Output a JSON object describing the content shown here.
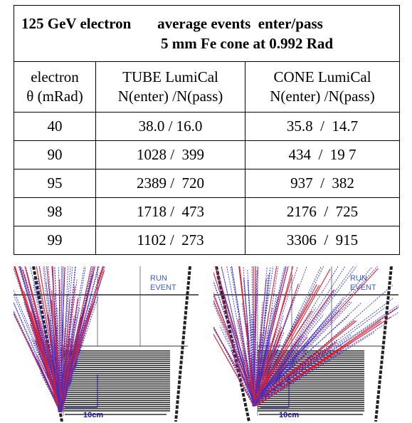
{
  "table": {
    "title_line1": "125 GeV electron       average events  enter/pass",
    "title_line2": "5 mm Fe cone at 0.992 Rad",
    "col1_header": [
      "electron",
      "θ (mRad)"
    ],
    "col2_header": [
      "TUBE LumiCal",
      "N(enter) /N(pass)"
    ],
    "col3_header": [
      "CONE LumiCal",
      "N(enter) /N(pass)"
    ],
    "rows": [
      {
        "theta": "40",
        "tube": "38.0 / 16.0",
        "cone": "35.8  /  14.7"
      },
      {
        "theta": "90",
        "tube": "1028 /  399",
        "cone": "434  /  19 7"
      },
      {
        "theta": "95",
        "tube": "2389 /  720",
        "cone": "937  /  382"
      },
      {
        "theta": "98",
        "tube": "1718 /  473",
        "cone": "2176  /  725"
      },
      {
        "theta": "99",
        "tube": "1102 /  273",
        "cone": "3306  /  915"
      }
    ]
  },
  "displays": {
    "tube": {
      "run_label": "RUN",
      "event_label": "EVENT",
      "scale_label": "10cm"
    },
    "cone": {
      "run_label": "RUN",
      "event_label": "EVENT",
      "scale_label": "10cm"
    },
    "track_colors": {
      "red": "#e0202a",
      "blue": "#2f2fd8"
    }
  }
}
